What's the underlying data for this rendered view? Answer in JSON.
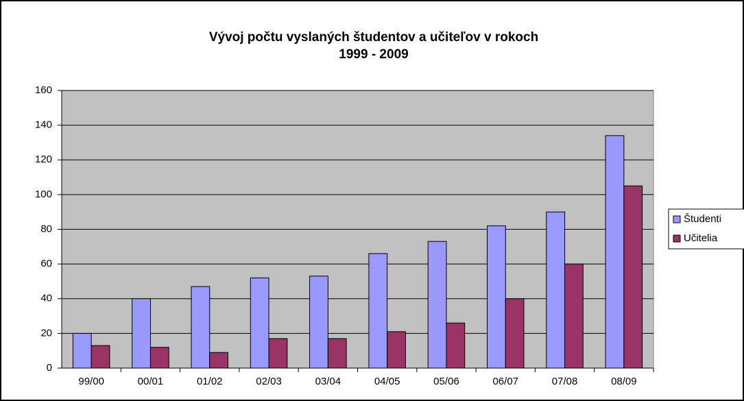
{
  "chart_data": {
    "type": "bar",
    "title": [
      "Vývoj počtu vyslaných študentov a učiteľov v rokoch",
      "1999 - 2009"
    ],
    "categories": [
      "99/00",
      "00/01",
      "01/02",
      "02/03",
      "03/04",
      "04/05",
      "05/06",
      "06/07",
      "07/08",
      "08/09"
    ],
    "series": [
      {
        "name": "Študenti",
        "color": "#9999ff",
        "values": [
          20,
          40,
          47,
          52,
          53,
          66,
          73,
          82,
          90,
          134
        ]
      },
      {
        "name": "Učitelia",
        "color": "#993366",
        "values": [
          13,
          12,
          9,
          17,
          17,
          21,
          26,
          40,
          60,
          105
        ]
      }
    ],
    "ylim": [
      0,
      160
    ],
    "yticks": [
      0,
      20,
      40,
      60,
      80,
      100,
      120,
      140,
      160
    ],
    "grid": true,
    "legend": "right"
  }
}
